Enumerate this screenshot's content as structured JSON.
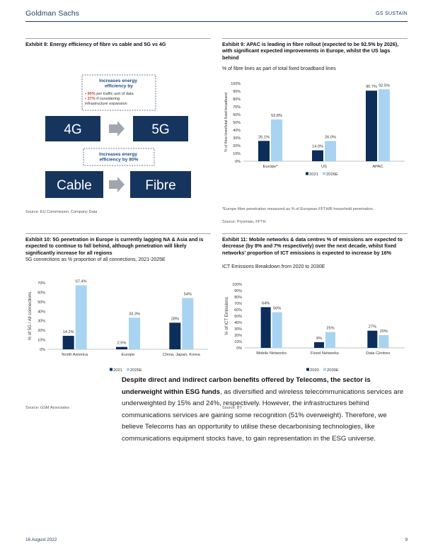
{
  "header": {
    "brand": "Goldman Sachs",
    "section": "GS SUSTAIN"
  },
  "colors": {
    "navy": "#0b2e5a",
    "lightblue": "#a8d4f2",
    "darkbox": "#16355e",
    "accent": "#1f3a5f"
  },
  "exhibit8": {
    "title": "Exhibit 8: Energy efficiency of fibre vs cable and 5G vs 4G",
    "box1_title": "Increases energy efficiency by",
    "box1_line1": "• 90% per traffic unit of data",
    "box1_line2": "• 37% if considering infrastructure expansion",
    "box2_title": "Increases energy efficiency by 80%",
    "tile_4g": "4G",
    "tile_5g": "5G",
    "tile_cable": "Cable",
    "tile_fibre": "Fibre",
    "source": "Source: EU Commission, Company Data"
  },
  "exhibit9": {
    "title": "Exhibit 9: APAC is leading in fibre rollout (expected to be 92.5% by 2026), with significant expected improvements in Europe, whilst the US lags behind",
    "subtitle": "% of fibre lines as part of total fixed broadband lines",
    "note": "*Europe fibre penetration measured as % of European FFTH/B household penetration.",
    "source": "Source: Prysmian, FFTH"
  },
  "exhibit10": {
    "title": "Exhibit 10: 5G penetration in Europe is currently lagging NA & Asia and is expected to continue to fall behind, although penetration will likely significantly increase for all regions",
    "subtitle": "5G connections as % proportion of all connections, 2021-2025E",
    "source": "Source: GSM Associates"
  },
  "exhibit11": {
    "title": "Exhibit 11: Mobile networks & data centres % of emissions are expected to decrease (by 8% and 7% respectively) over the next decade, whilst fixed networks' proportion of ICT emissions is expected to increase by 16%",
    "subtitle": "ICT Emissions Breakdown from 2020 to 2030E",
    "source": "Source: BT"
  },
  "body": {
    "bold": "Despite direct and indirect carbon benefits offered by Telecoms, the sector is underweight within ESG funds",
    "rest": ", as diversified and wireless telecommunications services are underweighted by 15% and 24%, respectively. However, the infrastructures behind communications services are gaining some recognition (51% overweight). Therefore, we believe Telecoms has an opportunity to utilise these decarbonising technologies, like communications equipment stocks have, to gain representation in the ESG universe."
  },
  "footer": {
    "date": "16 August 2022",
    "page": "9"
  },
  "chart_data": [
    {
      "id": "exhibit9",
      "type": "bar",
      "categories": [
        "Europe*",
        "US",
        "APAC"
      ],
      "series": [
        {
          "name": "2021",
          "values": [
            26.1,
            14.0,
            90.7
          ],
          "color": "#0b2e5a"
        },
        {
          "name": "2026E",
          "values": [
            53.8,
            26.0,
            92.5
          ],
          "color": "#a8d4f2"
        }
      ],
      "value_labels": [
        [
          "26.1%",
          "14.0%",
          "90.7%"
        ],
        [
          "53.8%",
          "26.0%",
          "92.5%"
        ]
      ],
      "ylabel": "% of fibre lines/total fixed broadband",
      "ylim": [
        0,
        100
      ],
      "yticks": [
        "0%",
        "10%",
        "20%",
        "30%",
        "40%",
        "50%",
        "60%",
        "70%",
        "80%",
        "90%",
        "100%"
      ],
      "legend": "bottom"
    },
    {
      "id": "exhibit10",
      "type": "bar",
      "categories": [
        "North America",
        "Europe",
        "China, Japan, Korea"
      ],
      "series": [
        {
          "name": "2021",
          "values": [
            14.2,
            2.5,
            28
          ],
          "color": "#0b2e5a"
        },
        {
          "name": "2025E",
          "values": [
            67.4,
            33.3,
            54
          ],
          "color": "#a8d4f2"
        }
      ],
      "value_labels": [
        [
          "14.2%",
          "2.5%",
          "28%"
        ],
        [
          "67.4%",
          "33.3%",
          "54%"
        ]
      ],
      "ylabel": "% of 5G / All connections",
      "ylim": [
        0,
        70
      ],
      "yticks": [
        "0%",
        "10%",
        "20%",
        "30%",
        "40%",
        "50%",
        "60%",
        "70%"
      ],
      "legend": "bottom"
    },
    {
      "id": "exhibit11",
      "type": "bar",
      "categories": [
        "Mobile Networks",
        "Fixed Networks",
        "Data Centres"
      ],
      "series": [
        {
          "name": "2020",
          "values": [
            64,
            9,
            27
          ],
          "color": "#0b2e5a"
        },
        {
          "name": "2030E",
          "values": [
            56,
            25,
            20
          ],
          "color": "#a8d4f2"
        }
      ],
      "value_labels": [
        [
          "64%",
          "9%",
          "27%"
        ],
        [
          "56%",
          "25%",
          "20%"
        ]
      ],
      "ylabel": "% of ICT Emissions",
      "ylim": [
        0,
        100
      ],
      "yticks": [
        "0%",
        "10%",
        "20%",
        "30%",
        "40%",
        "50%",
        "60%",
        "70%",
        "80%",
        "90%",
        "100%"
      ],
      "legend": "bottom"
    }
  ]
}
